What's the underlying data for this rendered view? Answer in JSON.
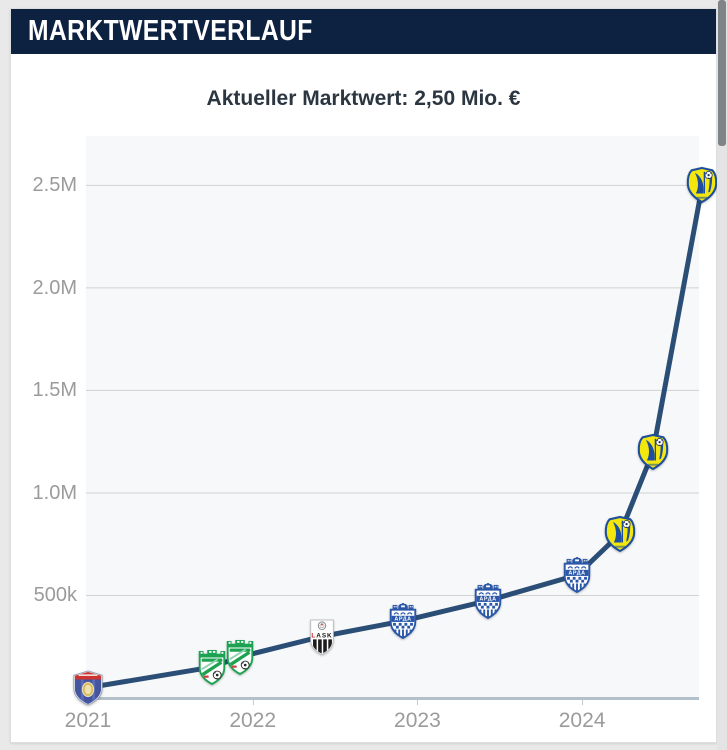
{
  "header": {
    "title": "MARKTWERTVERLAUF"
  },
  "subtitle": {
    "text": "Aktueller Marktwert: 2,50 Mio. €"
  },
  "colors": {
    "page_bg": "#e9e9e9",
    "card_bg": "#ffffff",
    "header_bg": "#0d2240",
    "subtitle_text": "#2c3640",
    "plot_bg": "#f7f8f9",
    "grid": "#d2d2d2",
    "axis": "#b3bfc9",
    "tick_label": "#9b9b9b",
    "line": "#2b4e76",
    "scrollbar_thumb": "#7f8488"
  },
  "icons": {
    "lask_label": "LASK",
    "arda_label": "АРДА",
    "marker_names": {
      "crest-redblue": "club-crest-red-blue-icon",
      "crest-green": "club-crest-green-icon",
      "crest-lask": "lask-club-crest-icon",
      "crest-arda": "arda-club-crest-icon",
      "crest-rostov": "rostov-club-crest-icon"
    }
  },
  "chart_data": {
    "type": "line",
    "title": "Marktwertverlauf",
    "currency": "EUR",
    "grid": true,
    "legend": false,
    "line_color": "#2b4e76",
    "x_ticks": [
      {
        "label": "2021",
        "year": 2021
      },
      {
        "label": "2022",
        "year": 2022
      },
      {
        "label": "2023",
        "year": 2023
      },
      {
        "label": "2024",
        "year": 2024
      }
    ],
    "y_ticks": [
      {
        "label": "500k",
        "value": 500000
      },
      {
        "label": "1.0M",
        "value": 1000000
      },
      {
        "label": "1.5M",
        "value": 1500000
      },
      {
        "label": "2.0M",
        "value": 2000000
      },
      {
        "label": "2.5M",
        "value": 2500000
      }
    ],
    "x_range": [
      2020.988,
      2024.71
    ],
    "y_range": [
      0,
      2741000
    ],
    "current_value": 2500000,
    "points": [
      {
        "year": 2021.0,
        "value": 50000,
        "club_icon": "crest-redblue"
      },
      {
        "year": 2021.75,
        "value": 150000,
        "club_icon": "crest-green"
      },
      {
        "year": 2021.92,
        "value": 200000,
        "club_icon": "crest-green"
      },
      {
        "year": 2022.42,
        "value": 300000,
        "club": "LASK",
        "club_icon": "crest-lask"
      },
      {
        "year": 2022.91,
        "value": 375000,
        "club": "АРДА",
        "club_icon": "crest-arda"
      },
      {
        "year": 2023.43,
        "value": 475000,
        "club": "АРДА",
        "club_icon": "crest-arda"
      },
      {
        "year": 2023.97,
        "value": 600000,
        "club": "АРДА",
        "club_icon": "crest-arda"
      },
      {
        "year": 2024.23,
        "value": 800000,
        "club_icon": "crest-rostov"
      },
      {
        "year": 2024.43,
        "value": 1200000,
        "club_icon": "crest-rostov"
      },
      {
        "year": 2024.73,
        "value": 2500000,
        "club_icon": "crest-rostov"
      }
    ]
  }
}
